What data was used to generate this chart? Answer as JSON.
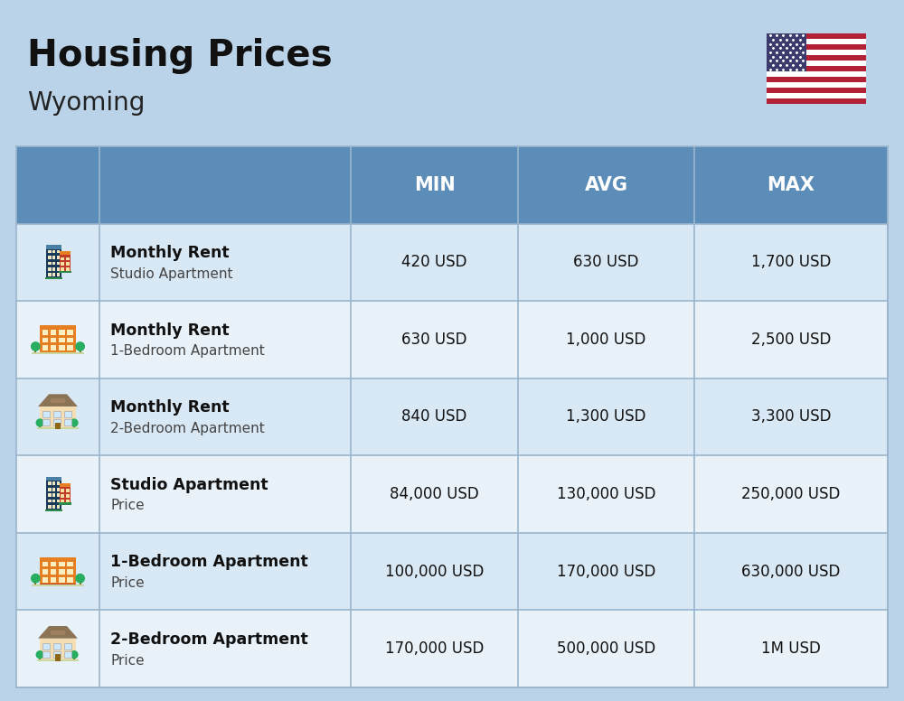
{
  "title": "Housing Prices",
  "subtitle": "Wyoming",
  "background_color": "#bad3e8",
  "header_color": "#5b8db8",
  "header_text_color": "#ffffff",
  "row_colors": [
    "#d9e8f5",
    "#eaf2f9"
  ],
  "col_headers": [
    "MIN",
    "AVG",
    "MAX"
  ],
  "rows": [
    {
      "bold_label": "Monthly Rent",
      "sub_label": "Studio Apartment",
      "min": "420 USD",
      "avg": "630 USD",
      "max": "1,700 USD",
      "icon_type": "city_blue"
    },
    {
      "bold_label": "Monthly Rent",
      "sub_label": "1-Bedroom Apartment",
      "min": "630 USD",
      "avg": "1,000 USD",
      "max": "2,500 USD",
      "icon_type": "apartment_orange"
    },
    {
      "bold_label": "Monthly Rent",
      "sub_label": "2-Bedroom Apartment",
      "min": "840 USD",
      "avg": "1,300 USD",
      "max": "3,300 USD",
      "icon_type": "house_tan"
    },
    {
      "bold_label": "Studio Apartment",
      "sub_label": "Price",
      "min": "84,000 USD",
      "avg": "130,000 USD",
      "max": "250,000 USD",
      "icon_type": "city_blue"
    },
    {
      "bold_label": "1-Bedroom Apartment",
      "sub_label": "Price",
      "min": "100,000 USD",
      "avg": "170,000 USD",
      "max": "630,000 USD",
      "icon_type": "apartment_orange"
    },
    {
      "bold_label": "2-Bedroom Apartment",
      "sub_label": "Price",
      "min": "170,000 USD",
      "avg": "500,000 USD",
      "max": "1M USD",
      "icon_type": "house_tan"
    }
  ],
  "fig_width": 10.0,
  "fig_height": 7.76,
  "dpi": 100
}
